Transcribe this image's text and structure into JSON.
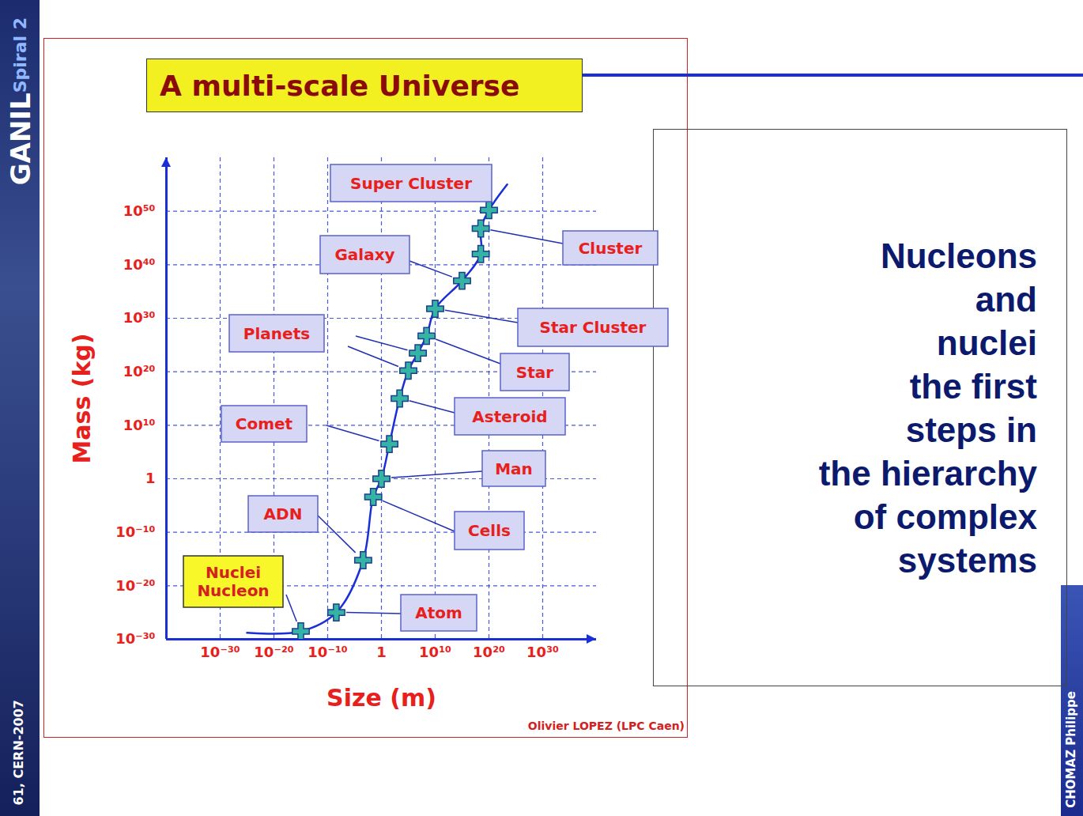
{
  "chart_data": {
    "type": "line",
    "title": "A multi-scale Universe",
    "x_label": "Size (m)",
    "y_label": "Mass (kg)",
    "log": true,
    "grid": true,
    "marker": "cross",
    "color": "#1a2fd6",
    "x": [
      1e-15,
      4e-09,
      0.0004,
      0.03,
      1,
      30,
      2500.0,
      100000.0,
      6000000.0,
      250000000.0,
      10000000000.0,
      1000000000000000.0,
      3e+18,
      3e+18,
      1e+20
    ],
    "y": [
      3e-29,
      1e-25,
      6e-16,
      0.0004,
      1,
      3000000.0,
      1000000000000000.0,
      1.6e+20,
      3e+23,
      5e+26,
      6e+31,
      1e+37,
      1e+42,
      6e+46,
      1.6e+50
    ],
    "curve_ends": {
      "x": [
        1e-25,
        2.5e+23
      ],
      "y": [
        1.6e-29,
        1e+55
      ]
    },
    "xlim": [
      1e-40,
      1e+40
    ],
    "ylim": [
      1e-30,
      1e+60
    ],
    "xticks": [
      {
        "value": 1e-30,
        "label": "10⁻³⁰"
      },
      {
        "value": 1e-20,
        "label": "10⁻²⁰"
      },
      {
        "value": 1e-10,
        "label": "10⁻¹⁰"
      },
      1,
      {
        "value": 10000000000.0,
        "label": "10¹⁰"
      },
      {
        "value": 1e+20,
        "label": "10²⁰"
      },
      {
        "value": 1e+30,
        "label": "10³⁰"
      }
    ],
    "yticks": [
      {
        "value": 1e-30,
        "label": "10⁻³⁰"
      },
      {
        "value": 1e-20,
        "label": "10⁻²⁰"
      },
      {
        "value": 1e-10,
        "label": "10⁻¹⁰"
      },
      1,
      {
        "value": 10000000000.0,
        "label": "10¹⁰"
      },
      {
        "value": 1e+20,
        "label": "10²⁰"
      },
      {
        "value": 1e+30,
        "label": "10³⁰"
      },
      {
        "value": 1e+40,
        "label": "10⁴⁰"
      },
      {
        "value": 1e+50,
        "label": "10⁵⁰"
      }
    ],
    "annotations": [
      "Super Cluster",
      "Cluster",
      "Galaxy",
      "Star Cluster",
      "Planets",
      "Star",
      "Comet",
      "Asteroid",
      "Man",
      "ADN",
      "Cells",
      "Nuclei\nNucleon",
      "Atom"
    ],
    "credit": "Olivier LOPEZ (LPC Caen)"
  },
  "slide": {
    "logo": "GANIL",
    "logo_sub": "Spiral 2",
    "footer": "61, CERN-2007",
    "author": "CHOMAZ Philippe",
    "side_text": [
      "Nucleons",
      "and",
      "nuclei",
      "the first",
      "steps in",
      "the hierarchy",
      "of complex",
      "systems"
    ]
  }
}
